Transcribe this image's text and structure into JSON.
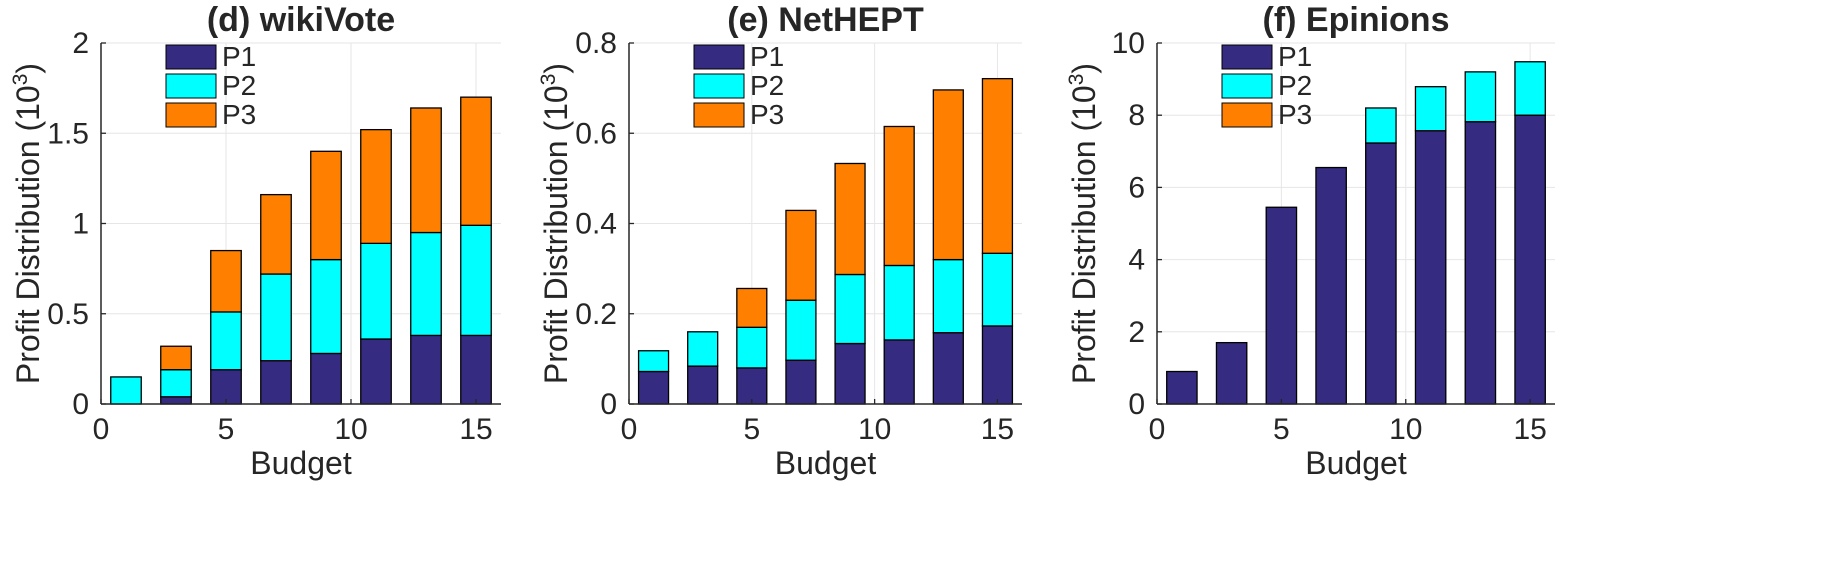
{
  "colors": {
    "P1": "#352C82",
    "P2": "#00FFFF",
    "P3": "#FF8000",
    "axis": "#262626",
    "grid": "#E6E6E6"
  },
  "chart_data": [
    {
      "type": "bar",
      "stacked": true,
      "title": "(d) wikiVote",
      "xlabel": "Budget",
      "ylabel": "Profit Distribution",
      "ylabel_exp": "3",
      "x": [
        1,
        3,
        5,
        7,
        9,
        11,
        13,
        15
      ],
      "xlim": [
        0,
        16
      ],
      "ylim": [
        0,
        2
      ],
      "xticks": [
        0,
        5,
        10,
        15
      ],
      "xtick_labels": [
        "0",
        "5",
        "10",
        "15"
      ],
      "yticks": [
        0,
        0.5,
        1,
        1.5,
        2
      ],
      "ytick_labels": [
        "0",
        "0.5",
        "1",
        "1.5",
        "2"
      ],
      "grid": true,
      "legend": "top-left",
      "series": [
        {
          "name": "P1",
          "values": [
            0,
            0.04,
            0.19,
            0.24,
            0.28,
            0.36,
            0.38,
            0.38
          ]
        },
        {
          "name": "P2",
          "values": [
            0.15,
            0.15,
            0.32,
            0.48,
            0.52,
            0.53,
            0.57,
            0.61
          ]
        },
        {
          "name": "P3",
          "values": [
            0,
            0.13,
            0.34,
            0.44,
            0.6,
            0.63,
            0.69,
            0.71
          ]
        }
      ]
    },
    {
      "type": "bar",
      "stacked": true,
      "title": "(e) NetHEPT",
      "xlabel": "Budget",
      "ylabel": "Profit Distribution",
      "ylabel_exp": "3",
      "x": [
        1,
        3,
        5,
        7,
        9,
        11,
        13,
        15
      ],
      "xlim": [
        0,
        16
      ],
      "ylim": [
        0,
        0.8
      ],
      "xticks": [
        0,
        5,
        10,
        15
      ],
      "xtick_labels": [
        "0",
        "5",
        "10",
        "15"
      ],
      "yticks": [
        0,
        0.2,
        0.4,
        0.6,
        0.8
      ],
      "ytick_labels": [
        "0",
        "0.2",
        "0.4",
        "0.6",
        "0.8"
      ],
      "grid": true,
      "legend": "top-left",
      "series": [
        {
          "name": "P1",
          "values": [
            0.072,
            0.084,
            0.08,
            0.097,
            0.134,
            0.142,
            0.158,
            0.173
          ]
        },
        {
          "name": "P2",
          "values": [
            0.046,
            0.076,
            0.09,
            0.133,
            0.153,
            0.165,
            0.162,
            0.161
          ]
        },
        {
          "name": "P3",
          "values": [
            0,
            0,
            0.086,
            0.199,
            0.246,
            0.308,
            0.376,
            0.387
          ]
        }
      ]
    },
    {
      "type": "bar",
      "stacked": true,
      "title": "(f) Epinions",
      "xlabel": "Budget",
      "ylabel": "Profit Distribution",
      "ylabel_exp": "3",
      "x": [
        1,
        3,
        5,
        7,
        9,
        11,
        13,
        15
      ],
      "xlim": [
        0,
        16
      ],
      "ylim": [
        0,
        10
      ],
      "xticks": [
        0,
        5,
        10,
        15
      ],
      "xtick_labels": [
        "0",
        "5",
        "10",
        "15"
      ],
      "yticks": [
        0,
        2,
        4,
        6,
        8,
        10
      ],
      "ytick_labels": [
        "0",
        "2",
        "4",
        "6",
        "8",
        "10"
      ],
      "grid": true,
      "legend": "top-left",
      "series": [
        {
          "name": "P1",
          "values": [
            0.9,
            1.7,
            5.45,
            6.55,
            7.23,
            7.57,
            7.82,
            8.0
          ]
        },
        {
          "name": "P2",
          "values": [
            0,
            0,
            0,
            0,
            0.97,
            1.22,
            1.38,
            1.48
          ]
        },
        {
          "name": "P3",
          "values": [
            0,
            0,
            0,
            0,
            0,
            0,
            0,
            0
          ]
        }
      ]
    }
  ]
}
